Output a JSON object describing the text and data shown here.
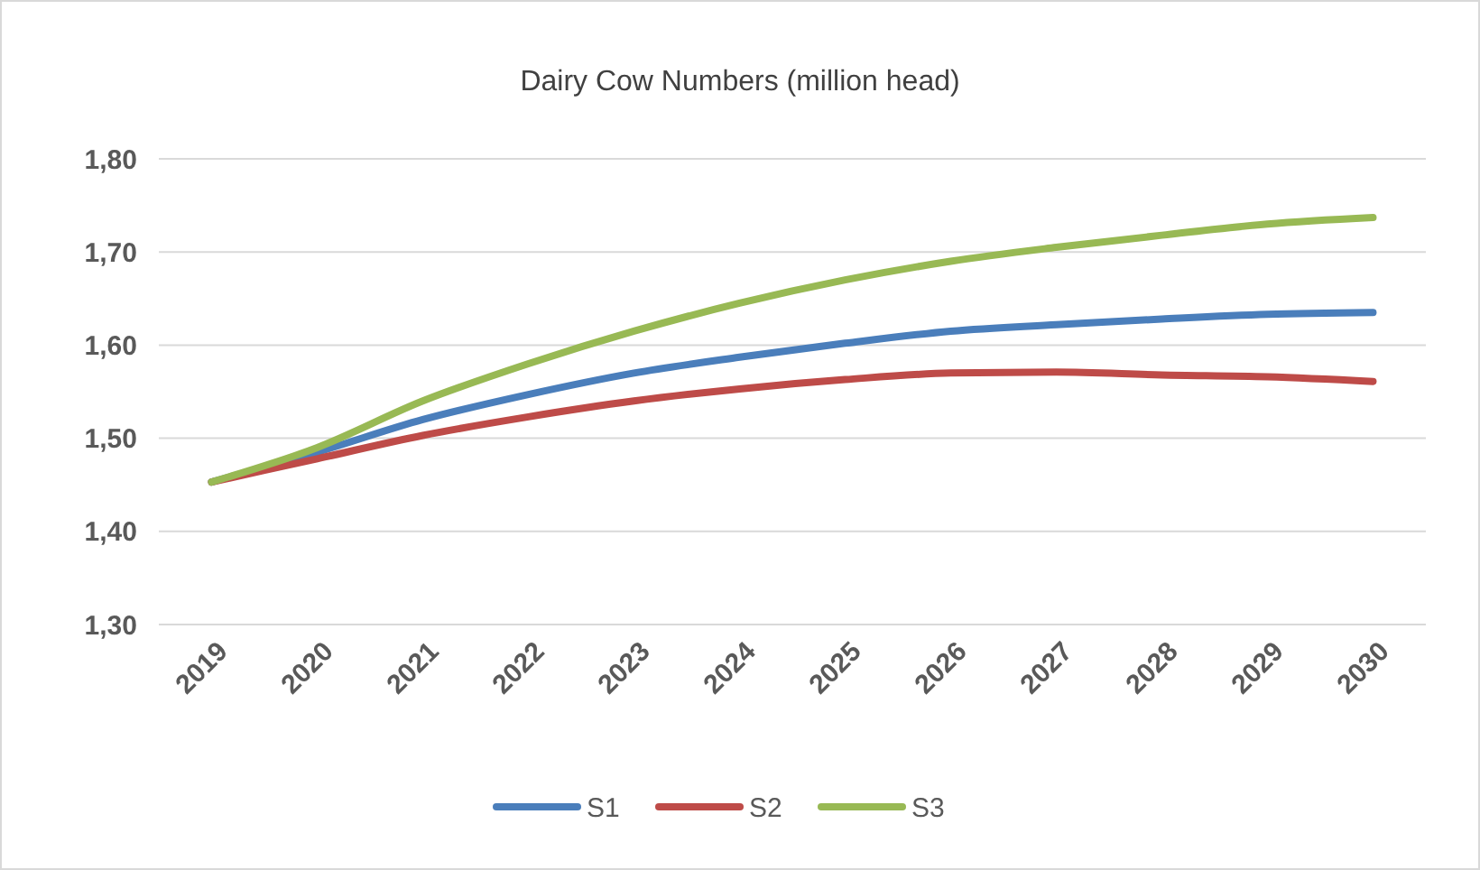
{
  "chart_data": {
    "type": "line",
    "title": "Dairy Cow Numbers (million head)",
    "categories": [
      "2019",
      "2020",
      "2021",
      "2022",
      "2023",
      "2024",
      "2025",
      "2026",
      "2027",
      "2028",
      "2029",
      "2030"
    ],
    "series": [
      {
        "name": "S1",
        "color": "#4a7ebb",
        "values": [
          1.453,
          1.485,
          1.52,
          1.547,
          1.57,
          1.587,
          1.602,
          1.615,
          1.622,
          1.628,
          1.633,
          1.635
        ]
      },
      {
        "name": "S2",
        "color": "#be4b48",
        "values": [
          1.453,
          1.478,
          1.503,
          1.523,
          1.54,
          1.553,
          1.563,
          1.57,
          1.571,
          1.568,
          1.566,
          1.561
        ]
      },
      {
        "name": "S3",
        "color": "#98b954",
        "values": [
          1.453,
          1.49,
          1.54,
          1.58,
          1.615,
          1.645,
          1.67,
          1.69,
          1.705,
          1.718,
          1.73,
          1.737
        ]
      }
    ],
    "ylim": [
      1.3,
      1.8
    ],
    "yticks": [
      {
        "value": 1.3,
        "label": "1,30"
      },
      {
        "value": 1.4,
        "label": "1,40"
      },
      {
        "value": 1.5,
        "label": "1,50"
      },
      {
        "value": 1.6,
        "label": "1,60"
      },
      {
        "value": 1.7,
        "label": "1,70"
      },
      {
        "value": 1.8,
        "label": "1,80"
      }
    ],
    "grid": "y",
    "legend": "bottom",
    "marker": "none",
    "line_style": "solid"
  }
}
